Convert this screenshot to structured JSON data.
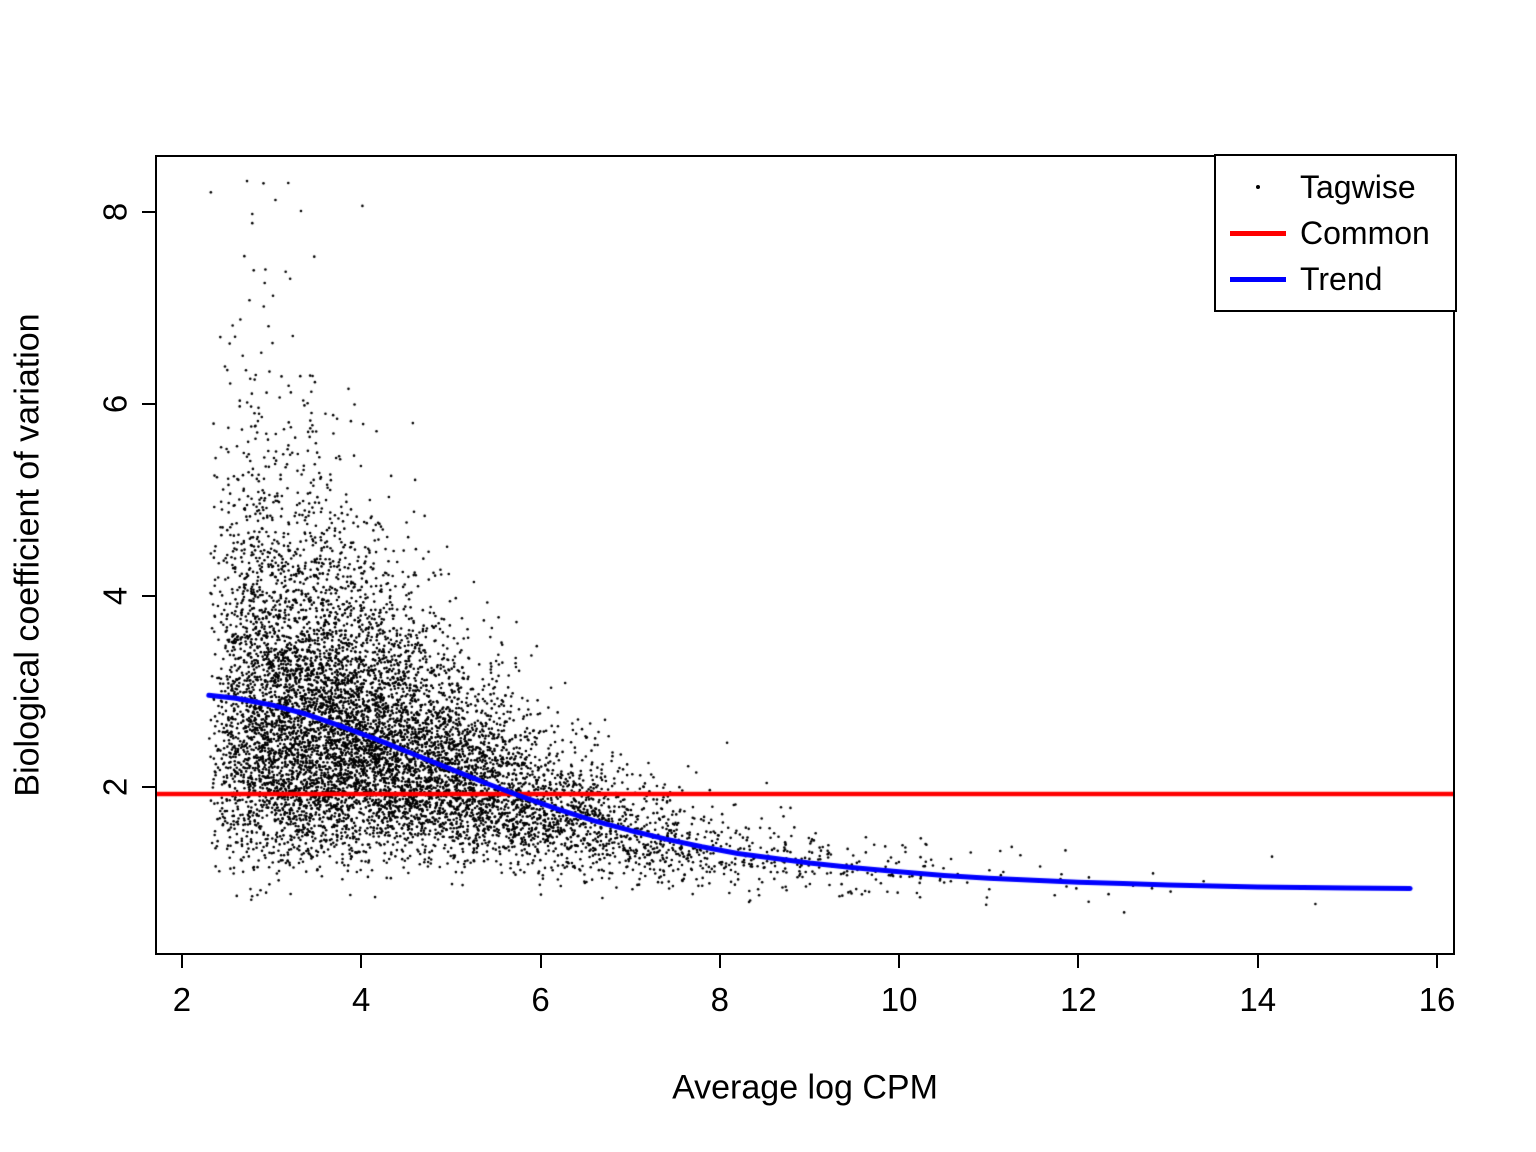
{
  "chart_data": {
    "type": "scatter",
    "title": "",
    "xlabel": "Average log CPM",
    "ylabel": "Biological coefficient of variation",
    "x_ticks": [
      2,
      4,
      6,
      8,
      10,
      12,
      14,
      16
    ],
    "y_ticks": [
      2,
      4,
      6,
      8
    ],
    "xlim": [
      1.7,
      16.2
    ],
    "ylim": [
      0.25,
      8.6
    ],
    "grid": false,
    "frame_color": "#000000",
    "background_color": "#ffffff",
    "legend": {
      "position": "top-right",
      "entries": [
        {
          "label": "Tagwise",
          "type": "point",
          "color": "#000000"
        },
        {
          "label": "Common",
          "type": "line",
          "color": "#ff0000"
        },
        {
          "label": "Trend",
          "type": "line",
          "color": "#0000ff"
        }
      ]
    },
    "common_line": {
      "name": "Common",
      "color": "#ff0000",
      "y": 1.93,
      "x_span": "full-width"
    },
    "trend_line": {
      "name": "Trend",
      "color": "#0000ff",
      "points": [
        [
          2.3,
          2.96
        ],
        [
          2.6,
          2.93
        ],
        [
          3.0,
          2.86
        ],
        [
          3.4,
          2.76
        ],
        [
          3.8,
          2.63
        ],
        [
          4.2,
          2.49
        ],
        [
          4.6,
          2.34
        ],
        [
          5.0,
          2.19
        ],
        [
          5.4,
          2.04
        ],
        [
          5.8,
          1.9
        ],
        [
          6.2,
          1.77
        ],
        [
          6.6,
          1.65
        ],
        [
          7.0,
          1.55
        ],
        [
          7.4,
          1.46
        ],
        [
          7.8,
          1.38
        ],
        [
          8.2,
          1.31
        ],
        [
          8.6,
          1.26
        ],
        [
          9.0,
          1.21
        ],
        [
          9.5,
          1.16
        ],
        [
          10.0,
          1.12
        ],
        [
          10.5,
          1.08
        ],
        [
          11.0,
          1.05
        ],
        [
          11.5,
          1.03
        ],
        [
          12.0,
          1.01
        ],
        [
          12.5,
          0.995
        ],
        [
          13.0,
          0.98
        ],
        [
          13.5,
          0.97
        ],
        [
          14.0,
          0.96
        ],
        [
          14.5,
          0.955
        ],
        [
          15.0,
          0.95
        ],
        [
          15.7,
          0.945
        ]
      ]
    },
    "scatter": {
      "name": "Tagwise",
      "color": "#000000",
      "point_radius_px": 1.3,
      "n_points": 9000,
      "seed": 42,
      "x_min": 2.3,
      "x_max": 15.7,
      "x_scale": 1.05,
      "sigma_base": 0.13,
      "sigma_amp": 0.3,
      "sigma_decay": 3.0,
      "y_min": 0.58,
      "y_max": 8.35
    }
  }
}
